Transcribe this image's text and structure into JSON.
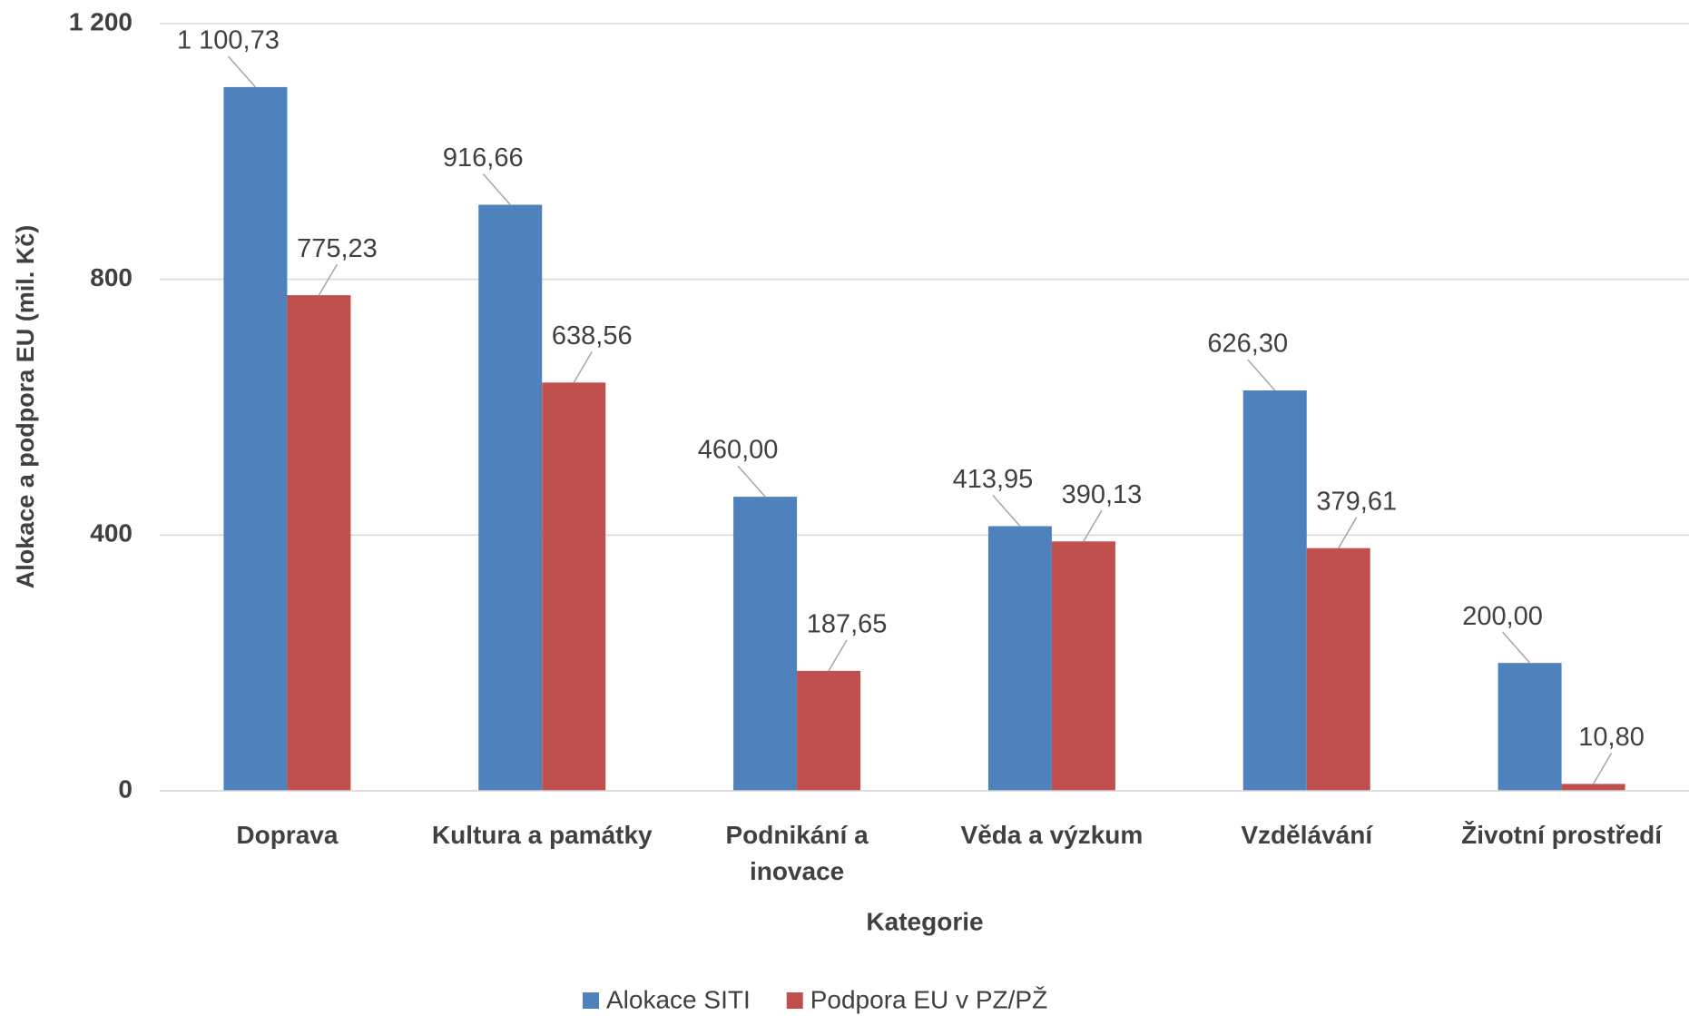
{
  "chart_data": {
    "type": "bar",
    "x_label": "Kategorie",
    "y_label": "Alokace  a podpora EU (mil. Kč)",
    "categories": [
      "Doprava",
      "Kultura a památky",
      "Podnikání a inovace",
      "Věda a výzkum",
      "Vzdělávání",
      "Životní prostředí"
    ],
    "series": [
      {
        "name": "Alokace SITI",
        "color": "#4f81bd",
        "values": [
          1100.73,
          916.66,
          460.0,
          413.95,
          626.3,
          200.0
        ],
        "value_labels": [
          "1 100,73",
          "916,66",
          "460,00",
          "413,95",
          "626,30",
          "200,00"
        ]
      },
      {
        "name": "Podpora EU v PZ/PŽ",
        "color": "#c0504d",
        "values": [
          775.23,
          638.56,
          187.65,
          390.13,
          379.61,
          10.8
        ],
        "value_labels": [
          "775,23",
          "638,56",
          "187,65",
          "390,13",
          "379,61",
          "10,80"
        ]
      }
    ],
    "ylim": [
      0,
      1200
    ],
    "yticks": [
      0,
      400,
      800,
      {
        "value": 1200,
        "label": "1 200"
      }
    ],
    "grid": true,
    "legend": "bottom"
  }
}
